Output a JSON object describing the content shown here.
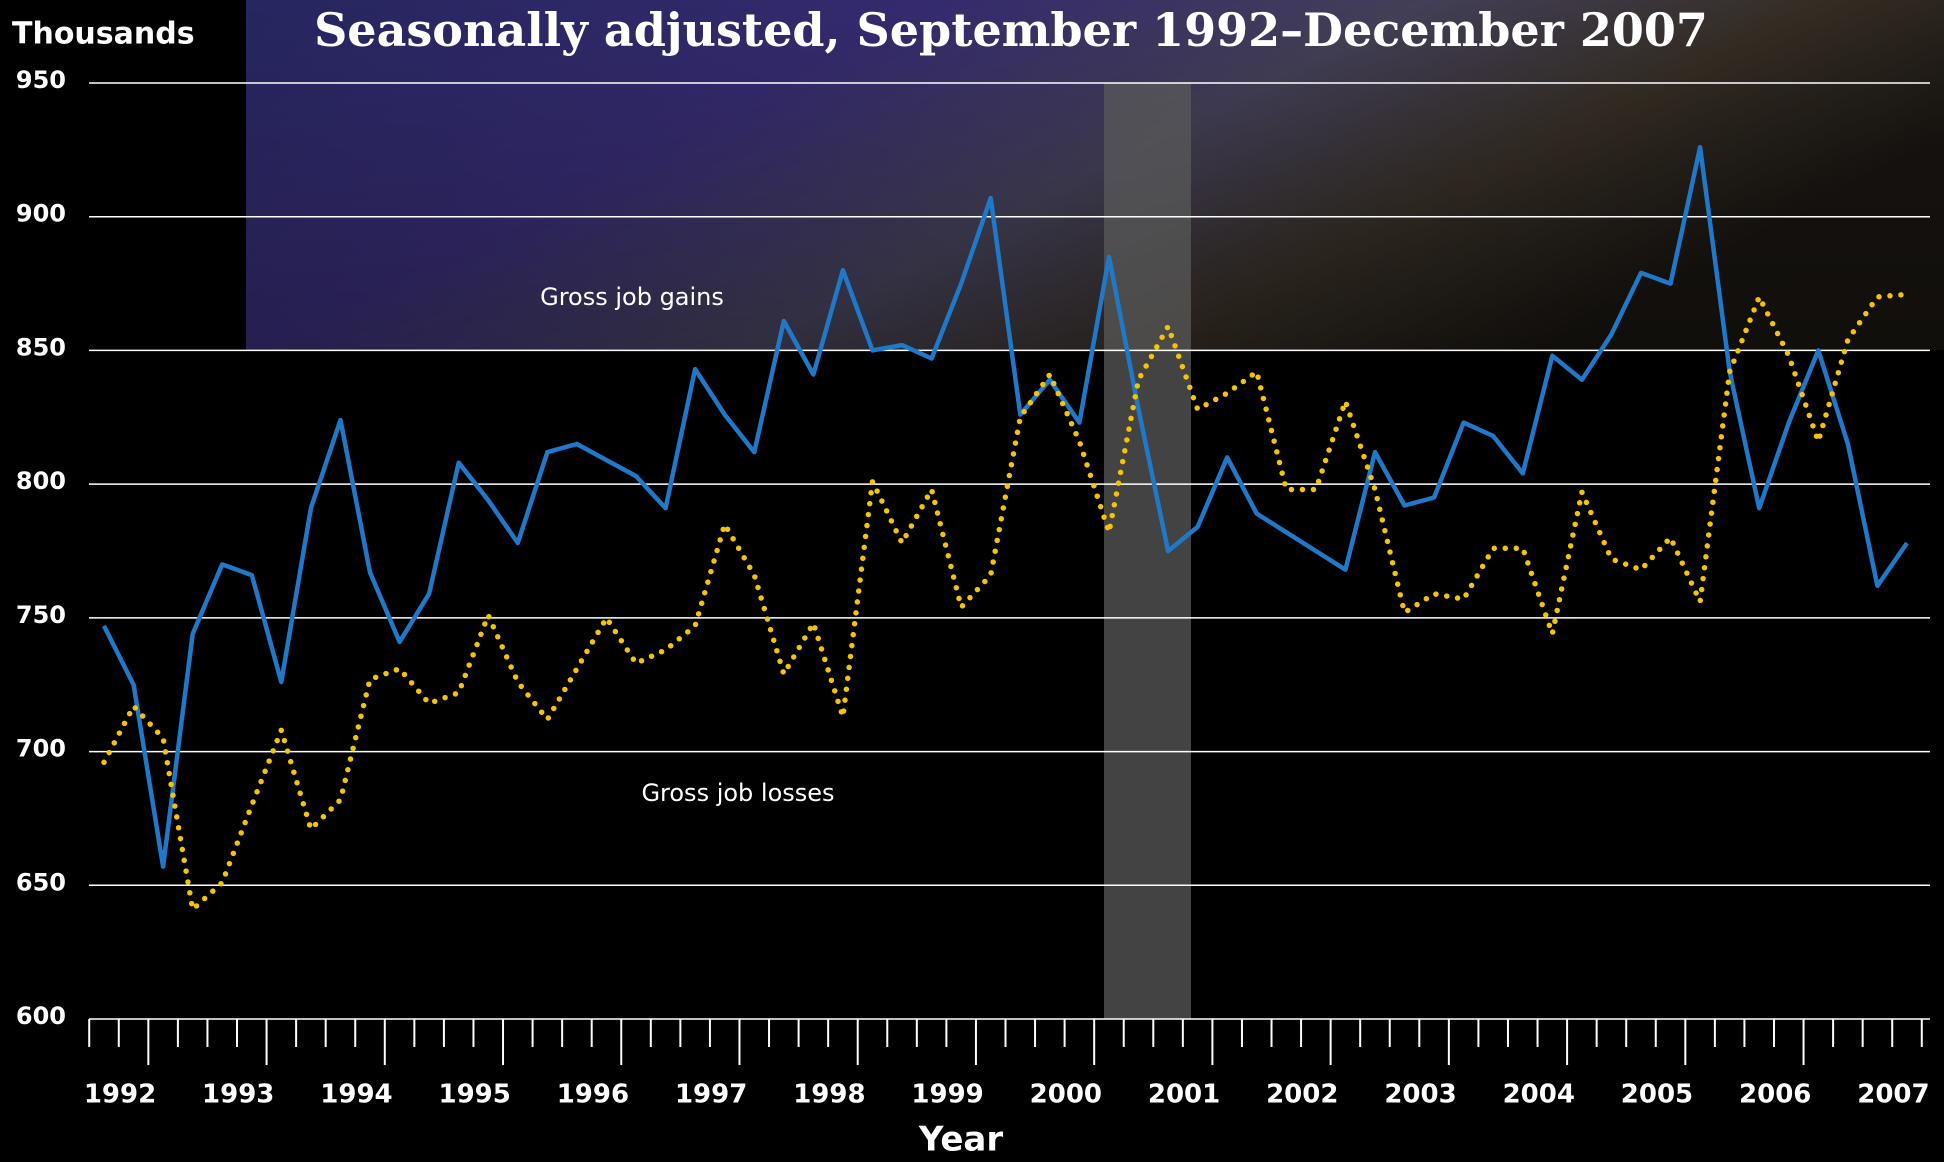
{
  "chart_data": {
    "type": "line",
    "title": "Seasonally adjusted, September 1992–December 2007",
    "y_label": "Thousands",
    "x_label": "Year",
    "annotations": [
      "Gross job gains",
      "Gross job losses"
    ],
    "categories": [
      "1992",
      null,
      null,
      null,
      "1993",
      null,
      null,
      null,
      "1994",
      null,
      null,
      null,
      "1995",
      null,
      null,
      null,
      "1996",
      null,
      null,
      null,
      "1997",
      null,
      null,
      null,
      "1998",
      null,
      null,
      null,
      "1999",
      null,
      null,
      null,
      "2000",
      null,
      null,
      null,
      "2001",
      null,
      null,
      null,
      "2002",
      null,
      null,
      null,
      "2003",
      null,
      null,
      null,
      "2004",
      null,
      null,
      null,
      "2005",
      null,
      null,
      null,
      "2006",
      null,
      null,
      null,
      "2007",
      null
    ],
    "series": [
      {
        "name": "Gross job gains",
        "color": "#1f78c8",
        "style": "solid",
        "values": [
          747,
          725,
          657,
          744,
          770,
          766,
          726,
          791,
          824,
          767,
          741,
          759,
          808,
          794,
          778,
          812,
          815,
          809,
          803,
          791,
          843,
          826,
          812,
          861,
          841,
          880,
          850,
          852,
          847,
          875,
          907,
          826,
          839,
          823,
          885,
          828,
          775,
          784,
          810,
          789,
          782,
          775,
          768,
          812,
          792,
          795,
          823,
          818,
          804,
          848,
          839,
          856,
          879,
          875,
          926,
          842,
          791,
          823,
          850,
          815,
          762,
          778
        ]
      },
      {
        "name": "Gross job losses",
        "color": "#f5c400",
        "style": "dotted",
        "values": [
          696,
          717,
          705,
          641,
          651,
          680,
          708,
          671,
          682,
          727,
          731,
          718,
          722,
          751,
          726,
          712,
          731,
          750,
          733,
          738,
          747,
          785,
          766,
          729,
          748,
          713,
          801,
          778,
          798,
          754,
          766,
          825,
          841,
          816,
          782,
          839,
          859,
          828,
          834,
          842,
          798,
          798,
          831,
          798,
          752,
          759,
          757,
          776,
          776,
          744,
          797,
          772,
          768,
          780,
          756,
          842,
          870,
          848,
          816,
          854,
          870,
          871
        ]
      }
    ],
    "ylim": [
      600,
      950
    ],
    "yticks": [
      600,
      650,
      700,
      750,
      800,
      850,
      900,
      950
    ],
    "grid": true
  }
}
